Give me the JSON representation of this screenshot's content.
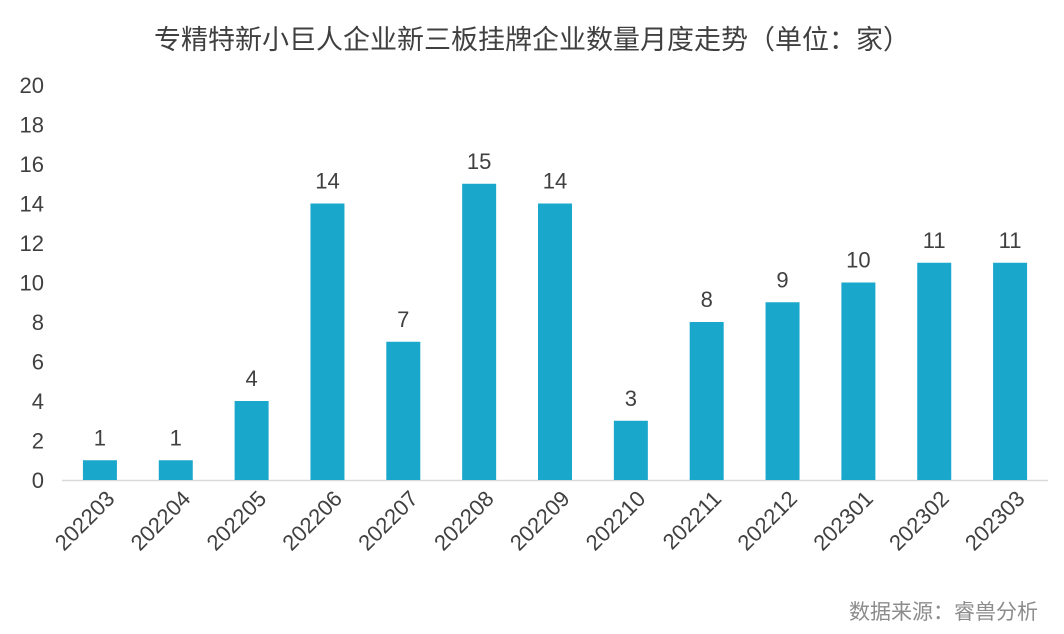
{
  "title": "专精特新小巨人企业新三板挂牌企业数量月度走势（单位：家）",
  "source": "数据来源：睿兽分析",
  "chart_data": {
    "type": "bar",
    "title": "专精特新小巨人企业新三板挂牌企业数量月度走势（单位：家）",
    "categories": [
      "202203",
      "202204",
      "202205",
      "202206",
      "202207",
      "202208",
      "202209",
      "202210",
      "202211",
      "202212",
      "202301",
      "202302",
      "202303"
    ],
    "values": [
      1,
      1,
      4,
      14,
      7,
      15,
      14,
      3,
      8,
      9,
      10,
      11,
      11
    ],
    "ylim": [
      0,
      20
    ],
    "yticks": [
      0,
      2,
      4,
      6,
      8,
      10,
      12,
      14,
      16,
      18,
      20
    ],
    "grid": false,
    "data_labels": true,
    "bar_color": "#1AA7CC",
    "axis_color": "#d9d9d9",
    "text_color": "#404040"
  }
}
